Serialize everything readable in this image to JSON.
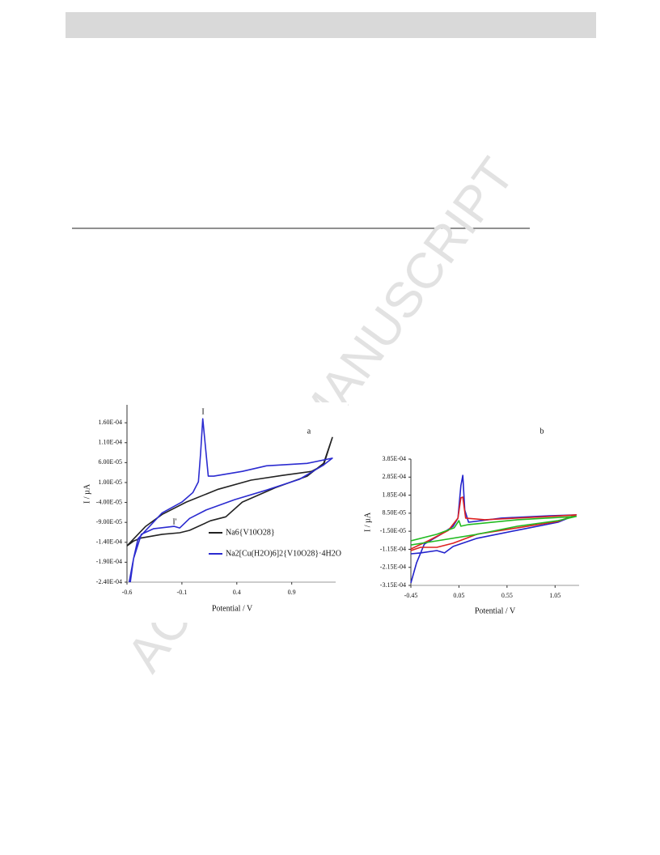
{
  "watermark": "ACCEPTED MANUSCRIPT",
  "chart_data": [
    {
      "type": "line",
      "ylabel": "I / µA",
      "xlabel": "Potential / V",
      "annotations": [
        "a",
        "I",
        "I'"
      ],
      "xlim": [
        -0.6,
        1.3
      ],
      "xticks": [
        -0.6,
        -0.1,
        0.4,
        0.9
      ],
      "ylim": [
        -0.00024,
        0.000205
      ],
      "yticks": [
        {
          "value": 0.00016,
          "label": "1.60E-04"
        },
        {
          "value": 0.00011,
          "label": "1.10E-04"
        },
        {
          "value": 6e-05,
          "label": "6.00E-05"
        },
        {
          "value": 1e-05,
          "label": "1.00E-05"
        },
        {
          "value": -4e-05,
          "label": "-4.00E-05"
        },
        {
          "value": -9e-05,
          "label": "-9.00E-05"
        },
        {
          "value": -0.00014,
          "label": "-1.40E-04"
        },
        {
          "value": -0.00019,
          "label": "-1.90E-04"
        },
        {
          "value": -0.00024,
          "label": "-2.40E-04"
        }
      ],
      "series": [
        {
          "name": "Na6{V10O28}",
          "color": "#222222",
          "x": [
            -0.6,
            -0.43,
            -0.28,
            -0.06,
            0.23,
            0.53,
            0.82,
            1.08,
            1.19,
            1.27,
            1.19,
            1.04,
            0.75,
            0.45,
            0.3,
            0.16,
            -0.03,
            -0.12,
            -0.28,
            -0.47,
            -0.54,
            -0.6
          ],
          "values": [
            -0.000149,
            -0.0001,
            -7e-05,
            -3.9e-05,
            -7e-06,
            1.6e-05,
            2.8e-05,
            3.8e-05,
            5.4e-05,
            0.000123,
            5.8e-05,
            2.6e-05,
            -3e-06,
            -3.9e-05,
            -7.6e-05,
            -8.6e-05,
            -0.00011,
            -0.000116,
            -0.00012,
            -0.000129,
            -0.000137,
            -0.000149
          ]
        },
        {
          "name": "Na2[Cu(H2O)6]2{V10O28}·4H2O",
          "color": "#2b2bd0",
          "x": [
            -0.57,
            -0.54,
            -0.5,
            -0.28,
            -0.1,
            0.0,
            0.05,
            0.07,
            0.09,
            0.12,
            0.14,
            0.19,
            0.45,
            0.67,
            1.04,
            1.27,
            1.19,
            0.97,
            0.67,
            0.38,
            0.12,
            -0.03,
            -0.12,
            -0.17,
            -0.36,
            -0.47,
            -0.54,
            -0.58
          ],
          "values": [
            -0.00024,
            -0.000181,
            -0.000131,
            -6.6e-05,
            -3.9e-05,
            -1.5e-05,
            1.2e-05,
            8.3e-05,
            0.00017,
            8.3e-05,
            2.6e-05,
            2.6e-05,
            3.8e-05,
            5.2e-05,
            5.8e-05,
            7.1e-05,
            5.4e-05,
            1.8e-05,
            -9e-06,
            -3.3e-05,
            -5.9e-05,
            -8e-05,
            -0.000104,
            -0.0001,
            -0.000106,
            -0.00012,
            -0.000181,
            -0.00024
          ]
        }
      ]
    },
    {
      "type": "line",
      "ylabel": "I / µA",
      "xlabel": "Potential / V",
      "annotations": [
        "b"
      ],
      "xlim": [
        -0.45,
        1.3
      ],
      "xticks": [
        -0.45,
        0.05,
        0.55,
        1.05
      ],
      "ylim": [
        -0.000315,
        0.000385
      ],
      "yticks": [
        {
          "value": 0.000385,
          "label": "3.85E-04"
        },
        {
          "value": 0.000285,
          "label": "2.85E-04"
        },
        {
          "value": 0.000185,
          "label": "1.85E-04"
        },
        {
          "value": 8.5e-05,
          "label": "8.50E-05"
        },
        {
          "value": -1.5e-05,
          "label": "-1.50E-05"
        },
        {
          "value": -0.000115,
          "label": "-1.15E-04"
        },
        {
          "value": -0.000215,
          "label": "-2.15E-04"
        },
        {
          "value": -0.000315,
          "label": "-3.15E-04"
        }
      ],
      "series": [
        {
          "color": "#2222cc",
          "x": [
            -0.45,
            -0.39,
            -0.31,
            -0.14,
            -0.01,
            0.04,
            0.07,
            0.09,
            0.11,
            0.15,
            0.49,
            0.99,
            1.27,
            1.08,
            0.66,
            0.24,
            -0.01,
            -0.1,
            -0.18,
            -0.35,
            -0.45
          ],
          "values": [
            -0.000301,
            -0.000189,
            -8.6e-05,
            -3.3e-05,
            1.3e-05,
            5.8e-05,
            0.000237,
            0.000295,
            0.000103,
            3.5e-05,
            5.8e-05,
            7.1e-05,
            7.6e-05,
            3.5e-05,
            -9e-06,
            -5.4e-05,
            -9.9e-05,
            -0.000135,
            -0.000122,
            -0.000135,
            -0.00014
          ]
        },
        {
          "color": "#dd2222",
          "x": [
            -0.45,
            -0.27,
            -0.06,
            0.04,
            0.07,
            0.09,
            0.12,
            0.32,
            0.99,
            1.27,
            1.08,
            0.66,
            0.24,
            -0.01,
            -0.18,
            -0.35,
            -0.45
          ],
          "values": [
            -0.000113,
            -6.8e-05,
            -1e-05,
            5.8e-05,
            0.00017,
            0.000174,
            5.8e-05,
            4.9e-05,
            6.7e-05,
            7.6e-05,
            4e-05,
            4e-06,
            -3.1e-05,
            -8.1e-05,
            -0.000104,
            -0.000104,
            -0.000122
          ]
        },
        {
          "color": "#22bb22",
          "x": [
            -0.45,
            -0.18,
            0.0,
            0.05,
            0.07,
            0.15,
            0.66,
            1.27,
            1.08,
            0.66,
            0.24,
            -0.18,
            -0.45
          ],
          "values": [
            -6.8e-05,
            -3.2e-05,
            4e-06,
            4.4e-05,
            1.3e-05,
            2.2e-05,
            4.9e-05,
            6.7e-05,
            4.4e-05,
            1.3e-05,
            -3.2e-05,
            -6.8e-05,
            -9.1e-05
          ]
        }
      ]
    }
  ]
}
